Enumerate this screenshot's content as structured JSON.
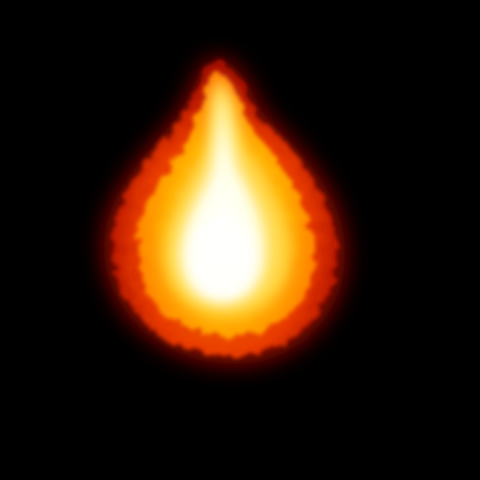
{
  "scene": {
    "subject": "fireball-flame",
    "background_color": "#000000",
    "colors": {
      "outer_red": "#D81400",
      "orange": "#FF6A00",
      "amber": "#FFB000",
      "yellow": "#FFE85A",
      "core_white": "#FFFFF0"
    }
  }
}
